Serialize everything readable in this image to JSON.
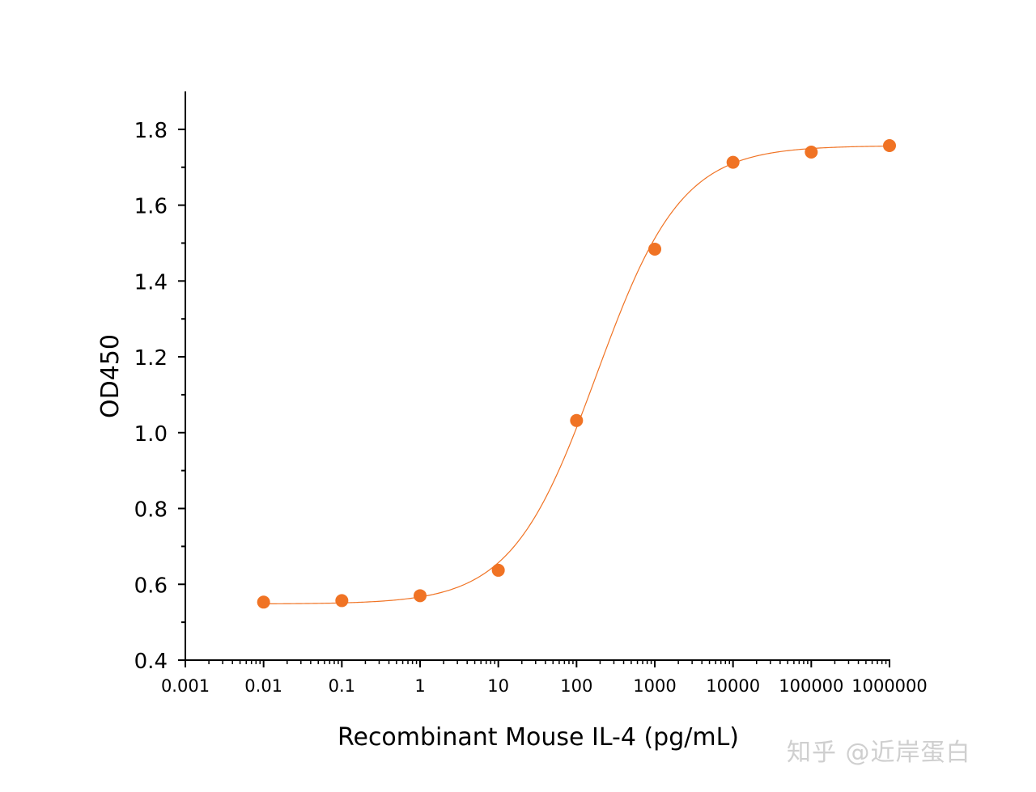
{
  "chart_data": {
    "type": "scatter",
    "title": "",
    "xlabel": "Recombinant Mouse IL-4 (pg/mL)",
    "ylabel": "OD450",
    "x_scale": "log",
    "xlim": [
      0.001,
      1000000
    ],
    "ylim": [
      0.4,
      1.9
    ],
    "x_ticks": [
      0.001,
      0.01,
      0.1,
      1,
      10,
      100,
      1000,
      10000,
      100000,
      1000000
    ],
    "x_tick_labels": [
      "0.001",
      "0.01",
      "0.1",
      "1",
      "10",
      "100",
      "1000",
      "10000",
      "100000",
      "1000000"
    ],
    "y_ticks": [
      0.4,
      0.6,
      0.8,
      1.0,
      1.2,
      1.4,
      1.6,
      1.8
    ],
    "y_tick_labels": [
      "0.4",
      "0.6",
      "0.8",
      "1.0",
      "1.2",
      "1.4",
      "1.6",
      "1.8"
    ],
    "grid": false,
    "legend": "none",
    "series": [
      {
        "x": [
          0.01,
          0.1,
          1,
          10,
          100,
          1000,
          10000,
          100000,
          1000000
        ],
        "y": [
          0.553,
          0.557,
          0.57,
          0.637,
          1.032,
          1.484,
          1.713,
          1.74,
          1.757
        ],
        "color": "#f07324"
      }
    ],
    "fit_curve": {
      "model": "4PL",
      "bottom": 0.548,
      "top": 1.757,
      "ec50": 180,
      "hill": 0.8,
      "color": "#f07324"
    }
  },
  "watermark": "知乎 @近岸蛋白"
}
